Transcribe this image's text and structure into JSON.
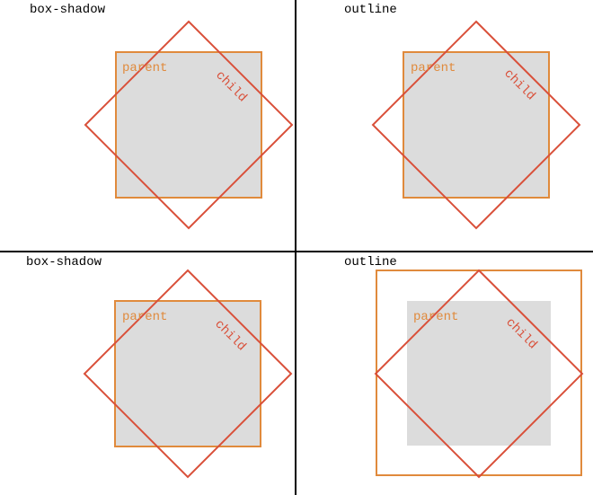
{
  "colors": {
    "parent": "#e08a3c",
    "child": "#d9503a",
    "fill": "#dcdcdc",
    "divider": "#000000"
  },
  "panels": [
    {
      "title": "box-shadow",
      "parent_label": "parent",
      "child_label": "child"
    },
    {
      "title": "outline",
      "parent_label": "parent",
      "child_label": "child"
    },
    {
      "title": "box-shadow",
      "parent_label": "parent",
      "child_label": "child"
    },
    {
      "title": "outline",
      "parent_label": "parent",
      "child_label": "child"
    }
  ]
}
